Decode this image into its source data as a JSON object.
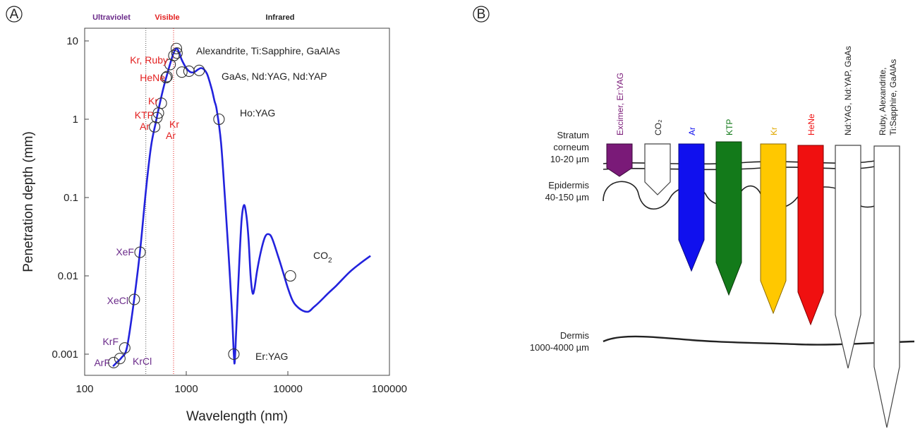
{
  "panel_a": {
    "letter": "A",
    "bands": {
      "uv": "Ultraviolet",
      "vis": "Visible",
      "ir": "Infrared"
    },
    "colors": {
      "curve": "#2222dd",
      "uv_label": "#6b2b8a",
      "vis_label": "#e32020",
      "other_label": "#222222"
    }
  },
  "panel_b": {
    "letter": "B",
    "layers": {
      "stratum_1": "Stratum",
      "stratum_2": "corneum",
      "stratum_3": "10-20 µm",
      "epidermis_1": "Epidermis",
      "epidermis_2": "40-150 µm",
      "dermis_1": "Dermis",
      "dermis_2": "1000-4000 µm"
    },
    "lasers": [
      {
        "name": "Excimer, Er:YAG",
        "color": "#7a1a78",
        "text_color": "#7a1a78",
        "depth": "stratum corneum"
      },
      {
        "name": "CO₂",
        "color": "#ffffff",
        "text_color": "#222222",
        "depth": "epidermis"
      },
      {
        "name": "Ar",
        "color": "#1010ee",
        "text_color": "#1010ee",
        "depth": "epidermis-dermis"
      },
      {
        "name": "KTP",
        "color": "#137a1a",
        "text_color": "#137a1a",
        "depth": "epidermis-dermis"
      },
      {
        "name": "Kr",
        "color": "#ffc800",
        "text_color": "#e0a800",
        "depth": "dermis"
      },
      {
        "name": "HeNe",
        "color": "#f01010",
        "text_color": "#f01010",
        "depth": "dermis"
      },
      {
        "name": "Nd:YAG, Nd:YAP,  GaAs",
        "color": "#ffffff",
        "text_color": "#222222",
        "depth": "dermis"
      },
      {
        "name_1": "Ruby, Alexandrite,",
        "name_2": "Ti:Sapphire, GaAlAs",
        "color": "#ffffff",
        "text_color": "#222222",
        "depth": "deep dermis"
      }
    ]
  },
  "chart_data": {
    "type": "line",
    "xlabel": "Wavelength (nm)",
    "ylabel": "Penetration depth (mm)",
    "xscale": "log",
    "yscale": "log",
    "xlim": [
      100,
      100000
    ],
    "ylim": [
      0.0006,
      15
    ],
    "xticks": [
      "100",
      "1000",
      "10000",
      "100000"
    ],
    "yticks": [
      "0.001",
      "0.01",
      "0.1",
      "1",
      "10"
    ],
    "band_boundaries_nm": [
      400,
      750
    ],
    "series": [
      {
        "x": [
          190,
          210,
          230,
          260,
          300,
          350,
          400,
          450,
          500,
          550,
          600,
          650,
          700,
          750,
          800,
          850,
          900,
          1000,
          1100,
          1200,
          1300,
          1400,
          1500,
          1600,
          1700,
          1800,
          1900,
          2000,
          2200,
          2400,
          2600,
          2800,
          2940,
          3000,
          3100,
          3300,
          3500,
          3700,
          3900,
          4100,
          4300,
          4500,
          4700,
          5000,
          5500,
          6000,
          6500,
          7000,
          8000,
          9000,
          10000,
          11000,
          12000,
          14000,
          16000,
          18000,
          20000,
          25000,
          30000,
          40000,
          50000,
          65000
        ],
        "y": [
          0.0007,
          0.0008,
          0.0009,
          0.0012,
          0.004,
          0.02,
          0.12,
          0.45,
          0.9,
          1.6,
          2.6,
          3.8,
          5.3,
          7.0,
          8.0,
          7.2,
          5.8,
          4.5,
          4.0,
          4.0,
          4.3,
          4.5,
          4.3,
          3.8,
          3.0,
          2.3,
          1.7,
          1.3,
          0.5,
          0.1,
          0.02,
          0.004,
          0.001,
          0.0008,
          0.002,
          0.012,
          0.05,
          0.08,
          0.06,
          0.03,
          0.01,
          0.006,
          0.007,
          0.012,
          0.022,
          0.032,
          0.034,
          0.03,
          0.018,
          0.011,
          0.007,
          0.005,
          0.0042,
          0.0036,
          0.0035,
          0.004,
          0.0045,
          0.006,
          0.0075,
          0.011,
          0.014,
          0.018
        ]
      }
    ],
    "points": [
      {
        "label": "ArF",
        "x": 193,
        "y": 0.00078,
        "group": "uv"
      },
      {
        "label": "KrF",
        "x": 248,
        "y": 0.0012,
        "group": "uv"
      },
      {
        "label": "KrCl",
        "x": 222,
        "y": 0.00088,
        "group": "uv"
      },
      {
        "label": "XeCl",
        "x": 308,
        "y": 0.005,
        "group": "uv"
      },
      {
        "label": "XeF",
        "x": 351,
        "y": 0.02,
        "group": "uv"
      },
      {
        "label": "Ar",
        "x": 488,
        "y": 0.8,
        "group": "vis"
      },
      {
        "label": "Ar",
        "x": 514,
        "y": 1.05,
        "group": "vis"
      },
      {
        "label": "KTP",
        "x": 532,
        "y": 1.2,
        "group": "vis"
      },
      {
        "label": "Kr",
        "x": 568,
        "y": 1.6,
        "group": "vis"
      },
      {
        "label": "Kr",
        "x": 647,
        "y": 3.5,
        "group": "vis"
      },
      {
        "label": "HeNe",
        "x": 633,
        "y": 3.4,
        "group": "vis"
      },
      {
        "label": "Ruby",
        "x": 694,
        "y": 5.0,
        "group": "vis"
      },
      {
        "label": "Alexandrite",
        "x": 755,
        "y": 6.5,
        "group": "other"
      },
      {
        "label": "Ti:Sapphire",
        "x": 800,
        "y": 8.0,
        "group": "other"
      },
      {
        "label": "GaAlAs",
        "x": 810,
        "y": 7.0,
        "group": "other"
      },
      {
        "label": "GaAs",
        "x": 905,
        "y": 4.0,
        "group": "other"
      },
      {
        "label": "Nd:YAG",
        "x": 1064,
        "y": 4.1,
        "group": "other"
      },
      {
        "label": "Nd:YAP",
        "x": 1340,
        "y": 4.2,
        "group": "other"
      },
      {
        "label": "Ho:YAG",
        "x": 2100,
        "y": 1.0,
        "group": "other"
      },
      {
        "label": "Er:YAG",
        "x": 2940,
        "y": 0.001,
        "group": "other"
      },
      {
        "label": "CO2",
        "x": 10600,
        "y": 0.01,
        "group": "other"
      }
    ],
    "annotations": {
      "kr_ruby": "Kr, Ruby",
      "hene": "HeNe",
      "kr": "Kr",
      "ktp": "KTP",
      "ar": "Ar",
      "kr2": "Kr",
      "ar2": "Ar",
      "xef": "XeF",
      "xecl": "XeCl",
      "krf": "KrF",
      "arf": "ArF",
      "krcl": "KrCl",
      "alex": "Alexandrite, Ti:Sapphire, GaAlAs",
      "gaas": "GaAs, Nd:YAG, Nd:YAP",
      "hoyag": "Ho:YAG",
      "co2": "CO",
      "co2_sub": "2",
      "eryag": "Er:YAG"
    }
  }
}
